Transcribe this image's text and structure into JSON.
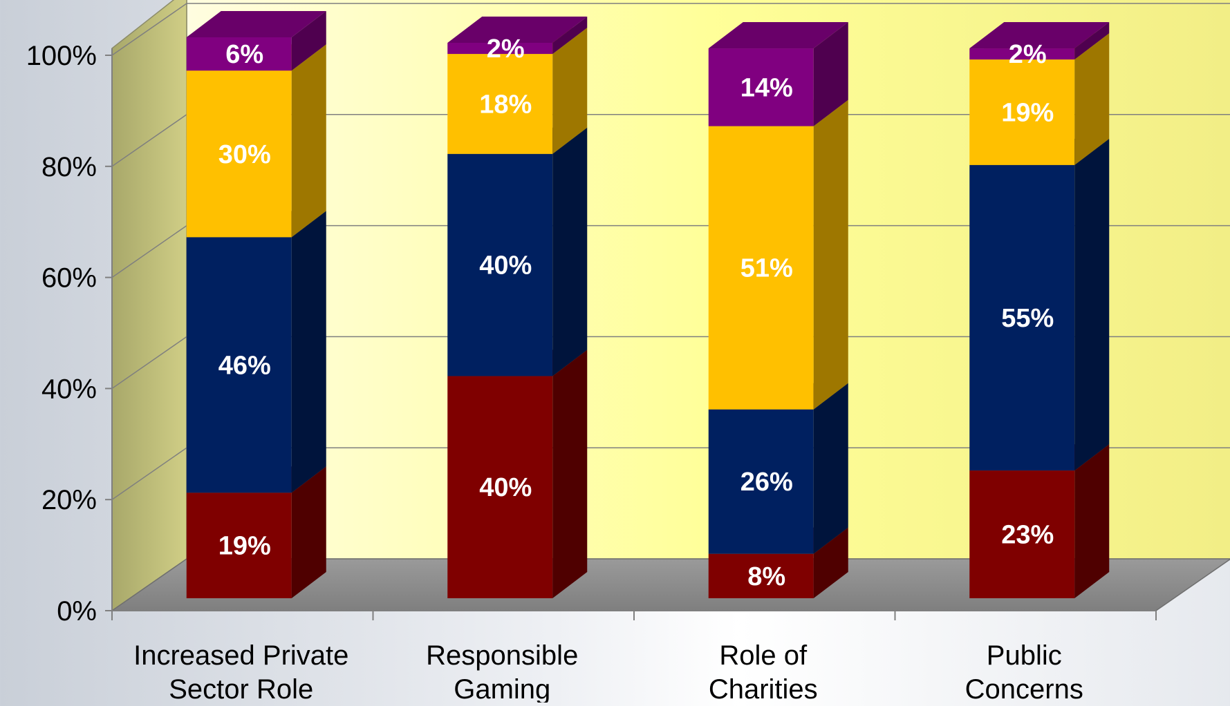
{
  "chart_data": {
    "type": "bar",
    "stacked": true,
    "three_d": true,
    "title": "",
    "categories": [
      "Increased Private Sector Role",
      "Responsible Gaming",
      "Role of Charities",
      "Public Concerns"
    ],
    "category_lines": [
      [
        "Increased Private",
        "Sector Role"
      ],
      [
        "Responsible",
        "Gaming"
      ],
      [
        "Role of",
        "Charities"
      ],
      [
        "Public",
        "Concerns"
      ]
    ],
    "series": [
      {
        "color": "#7f0000",
        "values": [
          19,
          40,
          8,
          23
        ],
        "labels": [
          "19%",
          "40%",
          "8%",
          "23%"
        ]
      },
      {
        "color": "#002060",
        "values": [
          46,
          40,
          26,
          55
        ],
        "labels": [
          "46%",
          "40%",
          "26%",
          "55%"
        ]
      },
      {
        "color": "#ffc000",
        "values": [
          30,
          18,
          51,
          19
        ],
        "labels": [
          "30%",
          "18%",
          "51%",
          "19%"
        ]
      },
      {
        "color": "#800080",
        "values": [
          6,
          2,
          14,
          2
        ],
        "labels": [
          "6%",
          "2%",
          "14%",
          "2%"
        ]
      }
    ],
    "y_ticks": [
      "0%",
      "20%",
      "40%",
      "60%",
      "80%",
      "100%"
    ],
    "ylim": [
      0,
      100
    ],
    "grid": true,
    "legend": "none",
    "colors": {
      "back_wall": "#ffff99",
      "side_wall": "#b5b36c",
      "floor": "#8c8c8c",
      "gridline": "#7f7f7f"
    }
  }
}
